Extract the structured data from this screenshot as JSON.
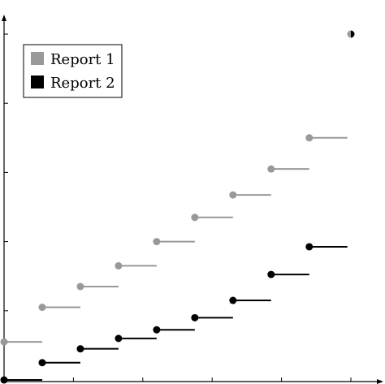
{
  "chart_data": {
    "type": "line",
    "subtype": "step-with-markers",
    "title": "",
    "xlabel": "",
    "ylabel": "",
    "xlim": [
      0,
      10
    ],
    "ylim": [
      0,
      10.5
    ],
    "xticks": [
      0,
      2,
      4,
      6,
      8,
      10
    ],
    "yticks": [
      0,
      2,
      4,
      6,
      8,
      10
    ],
    "tick_labels_shown": false,
    "grid": false,
    "legend_position": "top-left",
    "final_marker": {
      "x": 10,
      "y": 10,
      "style": "half-filled"
    },
    "series": [
      {
        "name": "Report 1",
        "color": "#999999",
        "x": [
          0,
          1.1,
          2.2,
          3.3,
          4.4,
          5.5,
          6.6,
          7.7,
          8.8
        ],
        "values": [
          1.1,
          2.1,
          2.7,
          3.3,
          4.0,
          4.7,
          5.35,
          6.1,
          7.0
        ],
        "step_width": 1.1
      },
      {
        "name": "Report 2",
        "color": "#000000",
        "x": [
          0,
          1.1,
          2.2,
          3.3,
          4.4,
          5.5,
          6.6,
          7.7,
          8.8
        ],
        "values": [
          0.0,
          0.5,
          0.9,
          1.2,
          1.45,
          1.8,
          2.3,
          3.05,
          3.85
        ],
        "step_width": 1.1
      }
    ],
    "series_points_note": ""
  },
  "legend": {
    "items": [
      {
        "label": "Report 1",
        "color": "#999999"
      },
      {
        "label": "Report 2",
        "color": "#000000"
      }
    ]
  }
}
